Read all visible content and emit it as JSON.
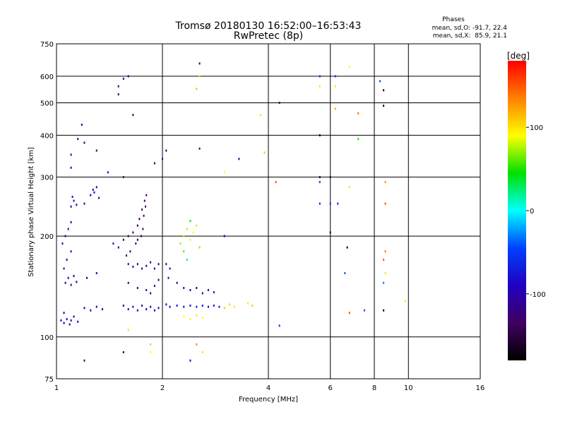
{
  "chart_data": {
    "type": "scatter",
    "title": "Tromsø 20180130 16:52:00–16:53:43",
    "subtitle": "RwPretec (8p)",
    "xlabel": "Frequency [MHz]",
    "ylabel": "Stationary phase Virtual Height [km]",
    "x_scale": "log",
    "y_scale": "log",
    "xlim": [
      1,
      16
    ],
    "ylim": [
      75,
      750
    ],
    "x_ticks": [
      1,
      2,
      4,
      6,
      8,
      10,
      16
    ],
    "x_tick_labels": [
      "1",
      "2",
      "4",
      "6",
      "8",
      "10",
      "16"
    ],
    "y_ticks": [
      75,
      100,
      200,
      300,
      400,
      500,
      600,
      750
    ],
    "y_tick_labels": [
      "75",
      "100",
      "200",
      "300",
      "400",
      "500",
      "600",
      "750"
    ],
    "x_gridlines": [
      2,
      4,
      6,
      8,
      10
    ],
    "y_gridlines": [
      100,
      200,
      300,
      400,
      500,
      600
    ],
    "info": {
      "heading": "Phases",
      "line_o": "mean, sd,O: -91.7, 22.4",
      "line_x": "mean, sd,X:  85.9, 21.1"
    },
    "colorbar": {
      "label": "[deg]",
      "range": [
        -180,
        180
      ],
      "ticks": [
        100,
        0,
        -100
      ],
      "tick_labels": [
        "100",
        "0",
        "-100"
      ],
      "colors": [
        "#ff0000",
        "#ff8000",
        "#ffff00",
        "#00e000",
        "#00ffff",
        "#0040ff",
        "#2000c0",
        "#400060",
        "#000000"
      ]
    },
    "points": [
      {
        "x": 1.03,
        "y": 112,
        "p": -100
      },
      {
        "x": 1.05,
        "y": 110,
        "p": -95
      },
      {
        "x": 1.07,
        "y": 113,
        "p": -105
      },
      {
        "x": 1.09,
        "y": 109,
        "p": -100
      },
      {
        "x": 1.1,
        "y": 112,
        "p": -90
      },
      {
        "x": 1.12,
        "y": 115,
        "p": -100
      },
      {
        "x": 1.05,
        "y": 118,
        "p": -110
      },
      {
        "x": 1.15,
        "y": 111,
        "p": -100
      },
      {
        "x": 1.06,
        "y": 145,
        "p": -110
      },
      {
        "x": 1.08,
        "y": 150,
        "p": -105
      },
      {
        "x": 1.1,
        "y": 143,
        "p": -115
      },
      {
        "x": 1.12,
        "y": 152,
        "p": -100
      },
      {
        "x": 1.14,
        "y": 146,
        "p": -110
      },
      {
        "x": 1.05,
        "y": 160,
        "p": -100
      },
      {
        "x": 1.07,
        "y": 170,
        "p": -95
      },
      {
        "x": 1.1,
        "y": 180,
        "p": -100
      },
      {
        "x": 1.04,
        "y": 190,
        "p": -110
      },
      {
        "x": 1.06,
        "y": 200,
        "p": -105
      },
      {
        "x": 1.08,
        "y": 210,
        "p": -100
      },
      {
        "x": 1.1,
        "y": 220,
        "p": -115
      },
      {
        "x": 1.1,
        "y": 245,
        "p": -105
      },
      {
        "x": 1.12,
        "y": 255,
        "p": -100
      },
      {
        "x": 1.14,
        "y": 248,
        "p": -110
      },
      {
        "x": 1.11,
        "y": 262,
        "p": -100
      },
      {
        "x": 1.2,
        "y": 250,
        "p": -110
      },
      {
        "x": 1.25,
        "y": 265,
        "p": -100
      },
      {
        "x": 1.28,
        "y": 270,
        "p": -95
      },
      {
        "x": 1.3,
        "y": 280,
        "p": -100
      },
      {
        "x": 1.27,
        "y": 275,
        "p": -105
      },
      {
        "x": 1.32,
        "y": 260,
        "p": -110
      },
      {
        "x": 1.1,
        "y": 350,
        "p": -110
      },
      {
        "x": 1.15,
        "y": 390,
        "p": -120
      },
      {
        "x": 1.2,
        "y": 380,
        "p": -115
      },
      {
        "x": 1.1,
        "y": 320,
        "p": -100
      },
      {
        "x": 1.18,
        "y": 430,
        "p": -120
      },
      {
        "x": 1.4,
        "y": 310,
        "p": -100
      },
      {
        "x": 1.3,
        "y": 360,
        "p": -125
      },
      {
        "x": 1.2,
        "y": 122,
        "p": -95
      },
      {
        "x": 1.25,
        "y": 120,
        "p": -90
      },
      {
        "x": 1.3,
        "y": 123,
        "p": -95
      },
      {
        "x": 1.35,
        "y": 121,
        "p": -100
      },
      {
        "x": 1.22,
        "y": 150,
        "p": -100
      },
      {
        "x": 1.3,
        "y": 155,
        "p": -105
      },
      {
        "x": 1.45,
        "y": 190,
        "p": -110
      },
      {
        "x": 1.5,
        "y": 185,
        "p": -100
      },
      {
        "x": 1.55,
        "y": 195,
        "p": -140
      },
      {
        "x": 1.6,
        "y": 200,
        "p": -130
      },
      {
        "x": 1.65,
        "y": 205,
        "p": -135
      },
      {
        "x": 1.7,
        "y": 215,
        "p": -140
      },
      {
        "x": 1.72,
        "y": 225,
        "p": -145
      },
      {
        "x": 1.75,
        "y": 240,
        "p": -135
      },
      {
        "x": 1.78,
        "y": 255,
        "p": -140
      },
      {
        "x": 1.8,
        "y": 265,
        "p": -130
      },
      {
        "x": 1.68,
        "y": 190,
        "p": -130
      },
      {
        "x": 1.62,
        "y": 180,
        "p": -140
      },
      {
        "x": 1.58,
        "y": 175,
        "p": -135
      },
      {
        "x": 1.74,
        "y": 200,
        "p": -140
      },
      {
        "x": 1.76,
        "y": 210,
        "p": -130
      },
      {
        "x": 1.7,
        "y": 195,
        "p": -145
      },
      {
        "x": 1.79,
        "y": 245,
        "p": -135
      },
      {
        "x": 1.77,
        "y": 230,
        "p": -140
      },
      {
        "x": 1.6,
        "y": 165,
        "p": -110
      },
      {
        "x": 1.65,
        "y": 162,
        "p": -105
      },
      {
        "x": 1.7,
        "y": 165,
        "p": -110
      },
      {
        "x": 1.75,
        "y": 160,
        "p": -100
      },
      {
        "x": 1.8,
        "y": 163,
        "p": -110
      },
      {
        "x": 1.85,
        "y": 167,
        "p": -105
      },
      {
        "x": 1.9,
        "y": 160,
        "p": -110
      },
      {
        "x": 1.95,
        "y": 165,
        "p": -100
      },
      {
        "x": 1.6,
        "y": 145,
        "p": -110
      },
      {
        "x": 1.7,
        "y": 140,
        "p": -105
      },
      {
        "x": 1.8,
        "y": 138,
        "p": -110
      },
      {
        "x": 1.9,
        "y": 142,
        "p": -100
      },
      {
        "x": 1.95,
        "y": 148,
        "p": -110
      },
      {
        "x": 1.85,
        "y": 135,
        "p": -105
      },
      {
        "x": 1.55,
        "y": 124,
        "p": -100
      },
      {
        "x": 1.6,
        "y": 121,
        "p": -95
      },
      {
        "x": 1.65,
        "y": 123,
        "p": -100
      },
      {
        "x": 1.7,
        "y": 120,
        "p": -105
      },
      {
        "x": 1.75,
        "y": 124,
        "p": -100
      },
      {
        "x": 1.8,
        "y": 121,
        "p": -95
      },
      {
        "x": 1.85,
        "y": 123,
        "p": -100
      },
      {
        "x": 1.9,
        "y": 120,
        "p": -100
      },
      {
        "x": 1.95,
        "y": 122,
        "p": -105
      },
      {
        "x": 1.5,
        "y": 530,
        "p": -120
      },
      {
        "x": 1.55,
        "y": 590,
        "p": -115
      },
      {
        "x": 1.6,
        "y": 600,
        "p": -110
      },
      {
        "x": 1.65,
        "y": 460,
        "p": -125
      },
      {
        "x": 1.5,
        "y": 560,
        "p": -120
      },
      {
        "x": 1.55,
        "y": 300,
        "p": -130
      },
      {
        "x": 1.9,
        "y": 330,
        "p": -120
      },
      {
        "x": 2.0,
        "y": 340,
        "p": -115
      },
      {
        "x": 2.05,
        "y": 360,
        "p": -120
      },
      {
        "x": 2.05,
        "y": 125,
        "p": -95
      },
      {
        "x": 2.1,
        "y": 123,
        "p": -90
      },
      {
        "x": 2.2,
        "y": 124,
        "p": -85
      },
      {
        "x": 2.3,
        "y": 123,
        "p": -85
      },
      {
        "x": 2.4,
        "y": 124,
        "p": -80
      },
      {
        "x": 2.5,
        "y": 123,
        "p": -75
      },
      {
        "x": 2.6,
        "y": 124,
        "p": -70
      },
      {
        "x": 2.7,
        "y": 123,
        "p": -75
      },
      {
        "x": 2.8,
        "y": 124,
        "p": -70
      },
      {
        "x": 2.9,
        "y": 123,
        "p": -65
      },
      {
        "x": 2.05,
        "y": 165,
        "p": -100
      },
      {
        "x": 2.1,
        "y": 160,
        "p": -95
      },
      {
        "x": 2.08,
        "y": 150,
        "p": -100
      },
      {
        "x": 2.2,
        "y": 145,
        "p": -95
      },
      {
        "x": 2.3,
        "y": 140,
        "p": -105
      },
      {
        "x": 2.4,
        "y": 138,
        "p": -100
      },
      {
        "x": 2.5,
        "y": 140,
        "p": -95
      },
      {
        "x": 2.6,
        "y": 135,
        "p": -100
      },
      {
        "x": 2.7,
        "y": 138,
        "p": -95
      },
      {
        "x": 2.8,
        "y": 136,
        "p": -100
      },
      {
        "x": 2.25,
        "y": 190,
        "p": 70
      },
      {
        "x": 2.3,
        "y": 200,
        "p": 80
      },
      {
        "x": 2.35,
        "y": 210,
        "p": 75
      },
      {
        "x": 2.4,
        "y": 195,
        "p": 85
      },
      {
        "x": 2.45,
        "y": 205,
        "p": 90
      },
      {
        "x": 2.5,
        "y": 215,
        "p": 80
      },
      {
        "x": 2.55,
        "y": 185,
        "p": 70
      },
      {
        "x": 2.3,
        "y": 180,
        "p": 60
      },
      {
        "x": 2.4,
        "y": 222,
        "p": 40
      },
      {
        "x": 2.35,
        "y": 170,
        "p": 20
      },
      {
        "x": 2.3,
        "y": 115,
        "p": 90
      },
      {
        "x": 2.4,
        "y": 113,
        "p": 95
      },
      {
        "x": 2.5,
        "y": 116,
        "p": 100
      },
      {
        "x": 2.6,
        "y": 114,
        "p": 90
      },
      {
        "x": 3.0,
        "y": 122,
        "p": 110
      },
      {
        "x": 3.1,
        "y": 125,
        "p": 105
      },
      {
        "x": 3.2,
        "y": 123,
        "p": 100
      },
      {
        "x": 3.5,
        "y": 126,
        "p": 100
      },
      {
        "x": 3.6,
        "y": 124,
        "p": 110
      },
      {
        "x": 3.0,
        "y": 310,
        "p": 90
      },
      {
        "x": 3.3,
        "y": 340,
        "p": -110
      },
      {
        "x": 3.8,
        "y": 460,
        "p": 100
      },
      {
        "x": 3.9,
        "y": 355,
        "p": 110
      },
      {
        "x": 3.0,
        "y": 200,
        "p": -90
      },
      {
        "x": 2.55,
        "y": 365,
        "p": -120
      },
      {
        "x": 2.5,
        "y": 550,
        "p": 70
      },
      {
        "x": 2.55,
        "y": 600,
        "p": 100
      },
      {
        "x": 2.55,
        "y": 655,
        "p": -140
      },
      {
        "x": 4.2,
        "y": 290,
        "p": 150
      },
      {
        "x": 4.3,
        "y": 108,
        "p": -50
      },
      {
        "x": 4.3,
        "y": 500,
        "p": -120
      },
      {
        "x": 5.6,
        "y": 600,
        "p": -60
      },
      {
        "x": 5.6,
        "y": 560,
        "p": 100
      },
      {
        "x": 5.6,
        "y": 400,
        "p": -170
      },
      {
        "x": 5.6,
        "y": 300,
        "p": -160
      },
      {
        "x": 5.6,
        "y": 290,
        "p": -50
      },
      {
        "x": 5.6,
        "y": 250,
        "p": -60
      },
      {
        "x": 6.0,
        "y": 300,
        "p": -150
      },
      {
        "x": 6.0,
        "y": 205,
        "p": -160
      },
      {
        "x": 6.0,
        "y": 250,
        "p": -60
      },
      {
        "x": 6.2,
        "y": 600,
        "p": -50
      },
      {
        "x": 6.2,
        "y": 560,
        "p": 100
      },
      {
        "x": 6.2,
        "y": 480,
        "p": 120
      },
      {
        "x": 6.3,
        "y": 250,
        "p": -70
      },
      {
        "x": 6.7,
        "y": 185,
        "p": -170
      },
      {
        "x": 6.6,
        "y": 155,
        "p": -40
      },
      {
        "x": 6.8,
        "y": 280,
        "p": 100
      },
      {
        "x": 6.8,
        "y": 118,
        "p": 150
      },
      {
        "x": 6.8,
        "y": 640,
        "p": 90
      },
      {
        "x": 7.2,
        "y": 465,
        "p": 140
      },
      {
        "x": 7.2,
        "y": 390,
        "p": 50
      },
      {
        "x": 7.5,
        "y": 120,
        "p": -40
      },
      {
        "x": 8.5,
        "y": 545,
        "p": -170
      },
      {
        "x": 8.5,
        "y": 490,
        "p": -160
      },
      {
        "x": 8.6,
        "y": 290,
        "p": 130
      },
      {
        "x": 8.6,
        "y": 250,
        "p": 150
      },
      {
        "x": 8.6,
        "y": 180,
        "p": 140
      },
      {
        "x": 8.5,
        "y": 170,
        "p": 150
      },
      {
        "x": 8.6,
        "y": 155,
        "p": 100
      },
      {
        "x": 8.5,
        "y": 145,
        "p": -30
      },
      {
        "x": 8.5,
        "y": 120,
        "p": -175
      },
      {
        "x": 8.3,
        "y": 580,
        "p": -40
      },
      {
        "x": 9.8,
        "y": 128,
        "p": 100
      },
      {
        "x": 1.55,
        "y": 90,
        "p": -150
      },
      {
        "x": 1.85,
        "y": 90,
        "p": 90
      },
      {
        "x": 1.85,
        "y": 95,
        "p": 110
      },
      {
        "x": 2.4,
        "y": 85,
        "p": -100
      },
      {
        "x": 2.6,
        "y": 90,
        "p": 100
      },
      {
        "x": 1.2,
        "y": 85,
        "p": -120
      },
      {
        "x": 1.6,
        "y": 105,
        "p": 100
      },
      {
        "x": 2.5,
        "y": 95,
        "p": 130
      }
    ]
  }
}
